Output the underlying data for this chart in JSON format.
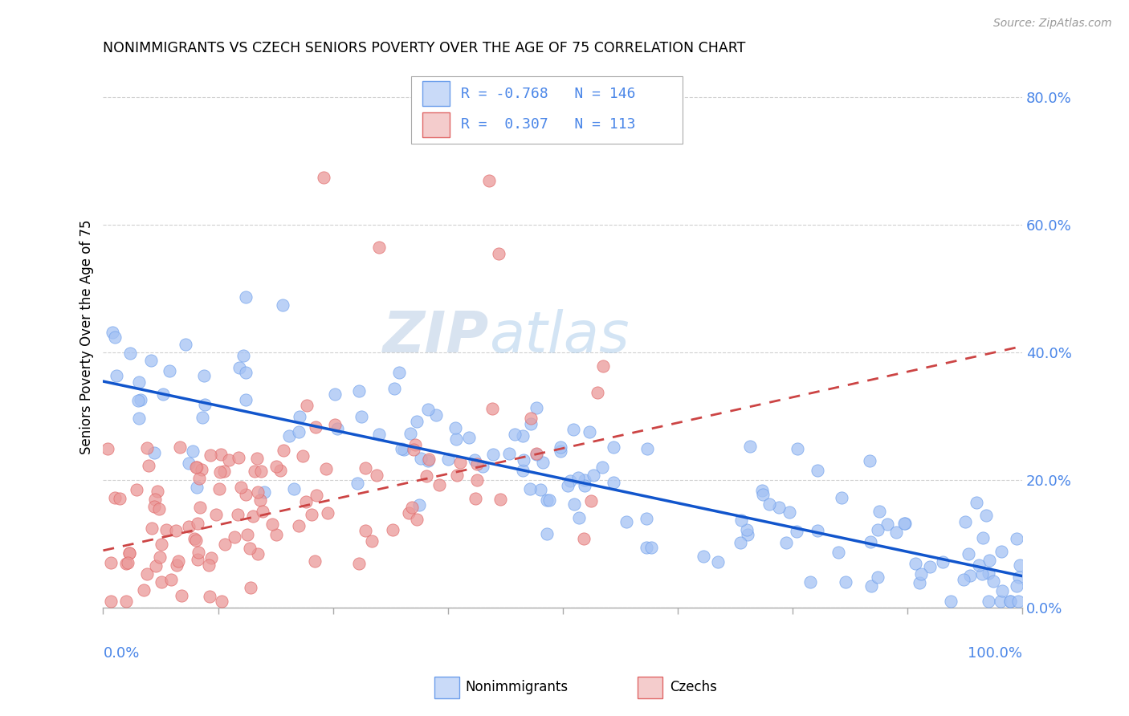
{
  "title": "NONIMMIGRANTS VS CZECH SENIORS POVERTY OVER THE AGE OF 75 CORRELATION CHART",
  "source": "Source: ZipAtlas.com",
  "ylabel": "Seniors Poverty Over the Age of 75",
  "legend": {
    "blue_R": "-0.768",
    "blue_N": "146",
    "pink_R": "0.307",
    "pink_N": "113"
  },
  "watermark_zip": "ZIP",
  "watermark_atlas": "atlas",
  "blue_color": "#a4c2f4",
  "blue_edge_color": "#6d9eeb",
  "pink_color": "#ea9999",
  "pink_edge_color": "#e06666",
  "blue_line_color": "#1155cc",
  "pink_line_color": "#cc4444",
  "legend_blue_fill": "#c9daf8",
  "legend_pink_fill": "#f4cccc",
  "background_color": "#ffffff",
  "title_color": "#000000",
  "axis_label_color": "#4a86e8",
  "ylabel_color": "#000000",
  "grid_color": "#cccccc",
  "source_color": "#999999",
  "blue_intercept": 0.355,
  "blue_slope": -0.305,
  "pink_intercept": 0.09,
  "pink_slope": 0.32,
  "xlim": [
    0,
    1.0
  ],
  "ylim": [
    0,
    0.85
  ],
  "ytick_vals": [
    0.0,
    0.2,
    0.4,
    0.6,
    0.8
  ],
  "ytick_labels": [
    "0.0%",
    "20.0%",
    "40.0%",
    "60.0%",
    "80.0%"
  ],
  "blue_seed": 42,
  "pink_seed": 99
}
